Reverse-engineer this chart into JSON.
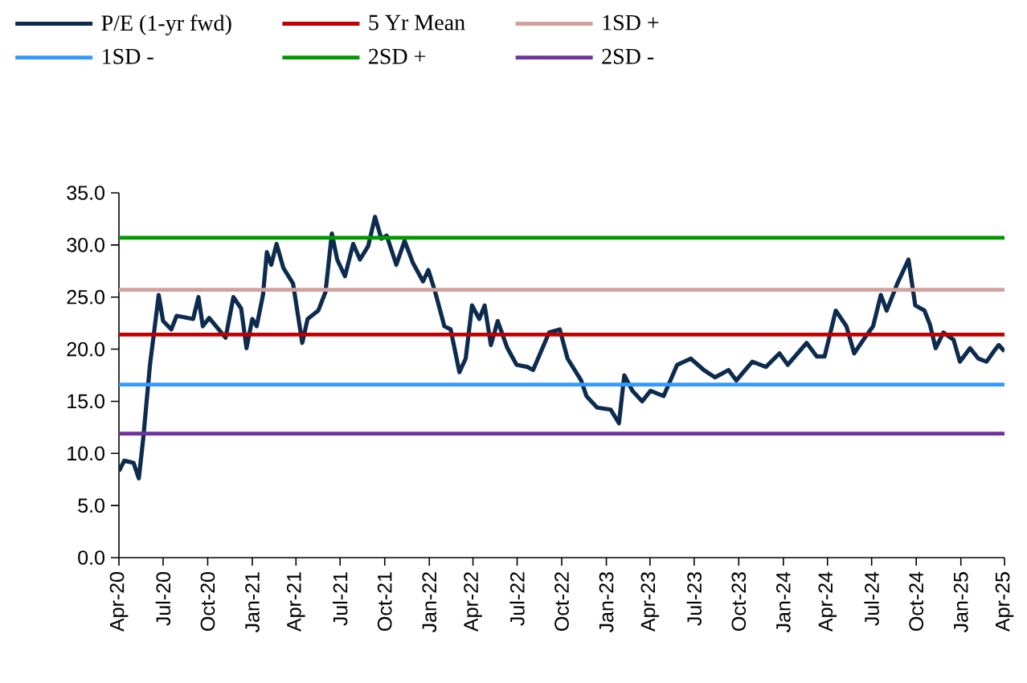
{
  "chart_data": {
    "type": "line",
    "legend": "top",
    "grid": false,
    "xlim": [
      "2020-04-01",
      "2025-04-01"
    ],
    "ylim": [
      0,
      35
    ],
    "yticks": [
      {
        "value": 0,
        "label": "0.0"
      },
      {
        "value": 5,
        "label": "5.0"
      },
      {
        "value": 10,
        "label": "10.0"
      },
      {
        "value": 15,
        "label": "15.0"
      },
      {
        "value": 20,
        "label": "20.0"
      },
      {
        "value": 25,
        "label": "25.0"
      },
      {
        "value": 30,
        "label": "30.0"
      },
      {
        "value": 35,
        "label": "35.0"
      }
    ],
    "xticks": [
      {
        "value": "2020-04-01",
        "label": "Apr-20"
      },
      {
        "value": "2020-07-01",
        "label": "Jul-20"
      },
      {
        "value": "2020-10-01",
        "label": "Oct-20"
      },
      {
        "value": "2021-01-01",
        "label": "Jan-21"
      },
      {
        "value": "2021-04-01",
        "label": "Apr-21"
      },
      {
        "value": "2021-07-01",
        "label": "Jul-21"
      },
      {
        "value": "2021-10-01",
        "label": "Oct-21"
      },
      {
        "value": "2022-01-01",
        "label": "Jan-22"
      },
      {
        "value": "2022-04-01",
        "label": "Apr-22"
      },
      {
        "value": "2022-07-01",
        "label": "Jul-22"
      },
      {
        "value": "2022-10-01",
        "label": "Oct-22"
      },
      {
        "value": "2023-01-01",
        "label": "Jan-23"
      },
      {
        "value": "2023-04-01",
        "label": "Apr-23"
      },
      {
        "value": "2023-07-01",
        "label": "Jul-23"
      },
      {
        "value": "2023-10-01",
        "label": "Oct-23"
      },
      {
        "value": "2024-01-01",
        "label": "Jan-24"
      },
      {
        "value": "2024-04-01",
        "label": "Apr-24"
      },
      {
        "value": "2024-07-01",
        "label": "Jul-24"
      },
      {
        "value": "2024-10-01",
        "label": "Oct-24"
      },
      {
        "value": "2025-01-01",
        "label": "Jan-25"
      },
      {
        "value": "2025-04-01",
        "label": "Apr-25"
      }
    ],
    "series": [
      {
        "name": "P/E (1-yr fwd)",
        "color": "#0d2b4e",
        "x": [
          "2020-04-01",
          "2020-04-12",
          "2020-05-01",
          "2020-05-12",
          "2020-05-21",
          "2020-06-04",
          "2020-06-22",
          "2020-07-01",
          "2020-07-18",
          "2020-07-29",
          "2020-09-01",
          "2020-09-12",
          "2020-09-21",
          "2020-10-04",
          "2020-11-07",
          "2020-11-23",
          "2020-12-09",
          "2020-12-20",
          "2021-01-01",
          "2021-01-10",
          "2021-01-23",
          "2021-01-31",
          "2021-02-09",
          "2021-02-20",
          "2021-03-06",
          "2021-03-26",
          "2021-04-14",
          "2021-04-25",
          "2021-05-17",
          "2021-06-01",
          "2021-06-14",
          "2021-06-25",
          "2021-07-11",
          "2021-07-28",
          "2021-08-11",
          "2021-08-28",
          "2021-09-11",
          "2021-09-24",
          "2021-10-05",
          "2021-10-25",
          "2021-11-11",
          "2021-11-28",
          "2021-12-19",
          "2021-12-30",
          "2022-01-13",
          "2022-02-01",
          "2022-02-14",
          "2022-03-04",
          "2022-03-17",
          "2022-03-30",
          "2022-04-14",
          "2022-04-25",
          "2022-05-08",
          "2022-05-22",
          "2022-06-11",
          "2022-06-30",
          "2022-07-22",
          "2022-08-03",
          "2022-09-05",
          "2022-09-27",
          "2022-10-13",
          "2022-11-10",
          "2022-11-21",
          "2022-12-13",
          "2023-01-10",
          "2023-01-27",
          "2023-02-07",
          "2023-02-24",
          "2023-03-16",
          "2023-04-02",
          "2023-04-29",
          "2023-05-27",
          "2023-06-24",
          "2023-07-21",
          "2023-08-13",
          "2023-09-10",
          "2023-09-26",
          "2023-10-29",
          "2023-11-26",
          "2023-12-24",
          "2024-01-10",
          "2024-02-18",
          "2024-03-10",
          "2024-03-26",
          "2024-04-18",
          "2024-05-10",
          "2024-05-26",
          "2024-06-17",
          "2024-07-04",
          "2024-07-20",
          "2024-08-01",
          "2024-08-23",
          "2024-09-15",
          "2024-09-29",
          "2024-10-18",
          "2024-10-29",
          "2024-11-10",
          "2024-11-26",
          "2024-12-17",
          "2024-12-30",
          "2025-01-20",
          "2025-02-06",
          "2025-02-23",
          "2025-03-10",
          "2025-03-20",
          "2025-04-01"
        ],
        "values": [
          8.3,
          9.3,
          9.1,
          7.6,
          11.4,
          18.5,
          25.2,
          22.7,
          21.9,
          23.2,
          22.9,
          25.0,
          22.2,
          23.0,
          21.1,
          25.0,
          23.9,
          20.1,
          22.9,
          22.2,
          25.2,
          29.3,
          28.1,
          30.1,
          27.8,
          26.3,
          20.6,
          22.9,
          23.7,
          25.5,
          31.1,
          28.6,
          27.0,
          30.1,
          28.6,
          29.9,
          32.7,
          30.6,
          30.9,
          28.1,
          30.4,
          28.3,
          26.5,
          27.6,
          25.5,
          22.2,
          21.9,
          17.8,
          19.1,
          24.2,
          22.9,
          24.2,
          20.4,
          22.7,
          20.1,
          18.5,
          18.3,
          18.0,
          21.6,
          21.9,
          19.1,
          17.0,
          15.5,
          14.4,
          14.2,
          12.9,
          17.5,
          16.0,
          15.0,
          16.0,
          15.5,
          18.5,
          19.1,
          18.0,
          17.3,
          18.0,
          17.0,
          18.8,
          18.3,
          19.6,
          18.5,
          20.6,
          19.3,
          19.3,
          23.7,
          22.2,
          19.6,
          21.1,
          22.2,
          25.2,
          23.7,
          26.3,
          28.6,
          24.2,
          23.7,
          22.4,
          20.1,
          21.6,
          20.9,
          18.8,
          20.1,
          19.1,
          18.8,
          19.8,
          20.4,
          19.8
        ]
      },
      {
        "name": "5 Yr Mean",
        "color": "#c00000",
        "x": [
          "2020-04-01",
          "2025-04-01"
        ],
        "values": [
          21.4,
          21.4
        ]
      },
      {
        "name": "1SD +",
        "color": "#d4a09c",
        "x": [
          "2020-04-01",
          "2025-04-01"
        ],
        "values": [
          25.7,
          25.7
        ]
      },
      {
        "name": "1SD -",
        "color": "#3399ff",
        "x": [
          "2020-04-01",
          "2025-04-01"
        ],
        "values": [
          16.6,
          16.6
        ]
      },
      {
        "name": "2SD +",
        "color": "#009900",
        "x": [
          "2020-04-01",
          "2025-04-01"
        ],
        "values": [
          30.7,
          30.7
        ]
      },
      {
        "name": "2SD -",
        "color": "#7030a0",
        "x": [
          "2020-04-01",
          "2025-04-01"
        ],
        "values": [
          11.9,
          11.9
        ]
      }
    ]
  }
}
